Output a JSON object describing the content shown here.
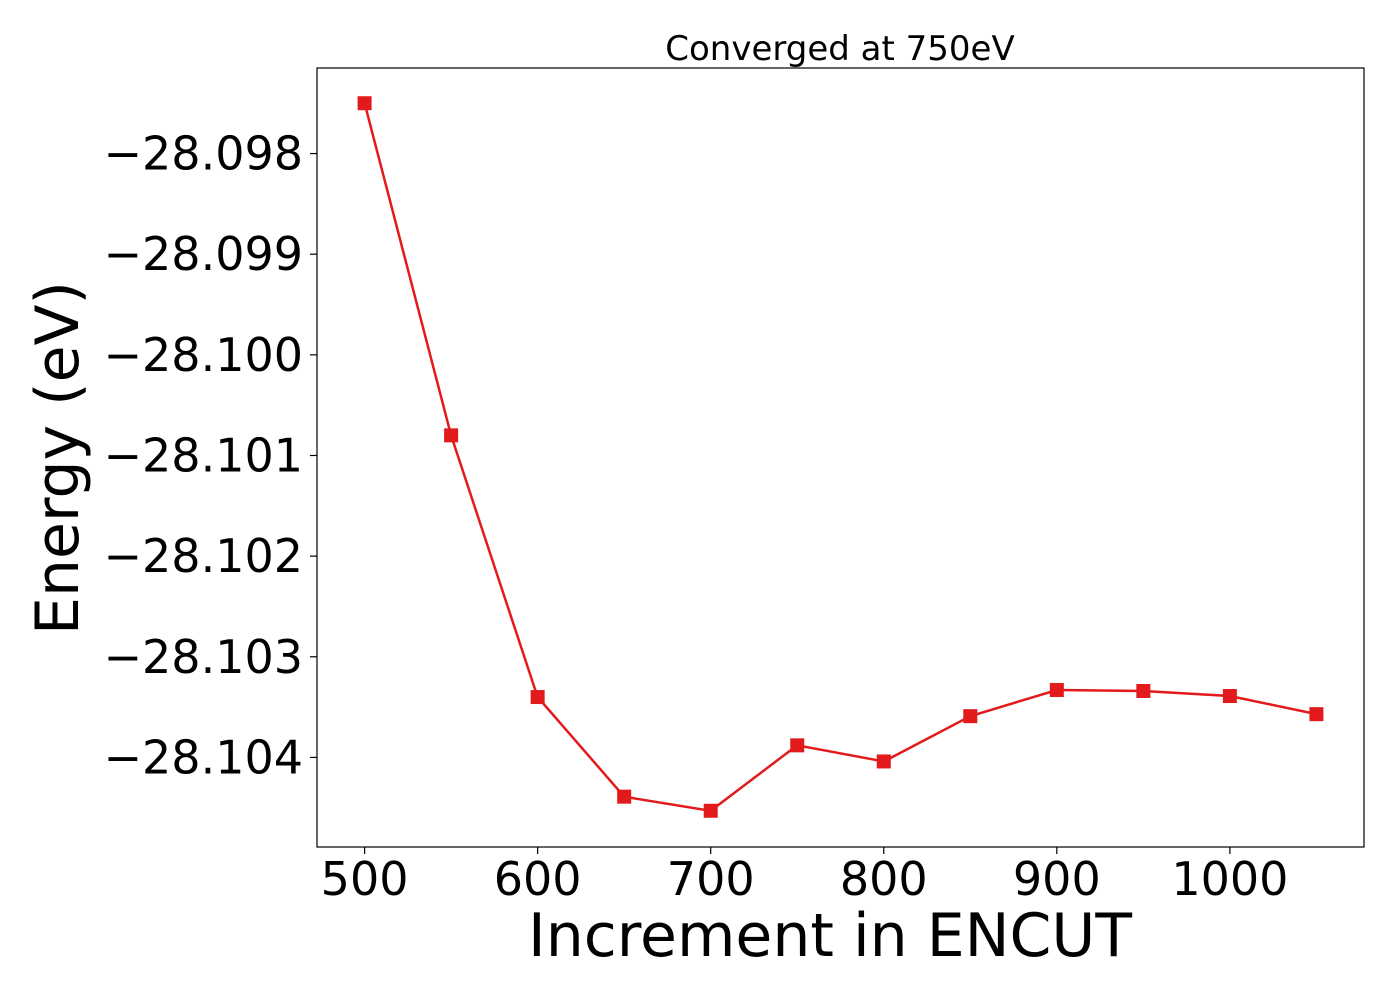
{
  "chart_data": {
    "type": "line",
    "title": "Converged at 750eV",
    "xlabel": "Increment in ENCUT",
    "ylabel": "Energy (eV)",
    "xlim": [
      472.5,
      1077.5
    ],
    "ylim": [
      -28.10489,
      -28.09715
    ],
    "xticks": [
      500,
      600,
      700,
      800,
      900,
      1000
    ],
    "xtick_labels": [
      "500",
      "600",
      "700",
      "800",
      "900",
      "1000"
    ],
    "yticks": [
      -28.098,
      -28.099,
      -28.1,
      -28.101,
      -28.102,
      -28.103,
      -28.104
    ],
    "ytick_labels": [
      "−28.098",
      "−28.099",
      "−28.100",
      "−28.101",
      "−28.102",
      "−28.103",
      "−28.104"
    ],
    "grid": false,
    "series": [
      {
        "color": "#e31a1c",
        "marker": "square",
        "x": [
          500,
          550,
          600,
          650,
          700,
          750,
          800,
          850,
          900,
          950,
          1000,
          1050
        ],
        "y": [
          -28.0975,
          -28.1008,
          -28.1034,
          -28.10439,
          -28.10453,
          -28.10388,
          -28.10404,
          -28.10359,
          -28.10333,
          -28.10334,
          -28.10339,
          -28.10357
        ]
      }
    ]
  }
}
